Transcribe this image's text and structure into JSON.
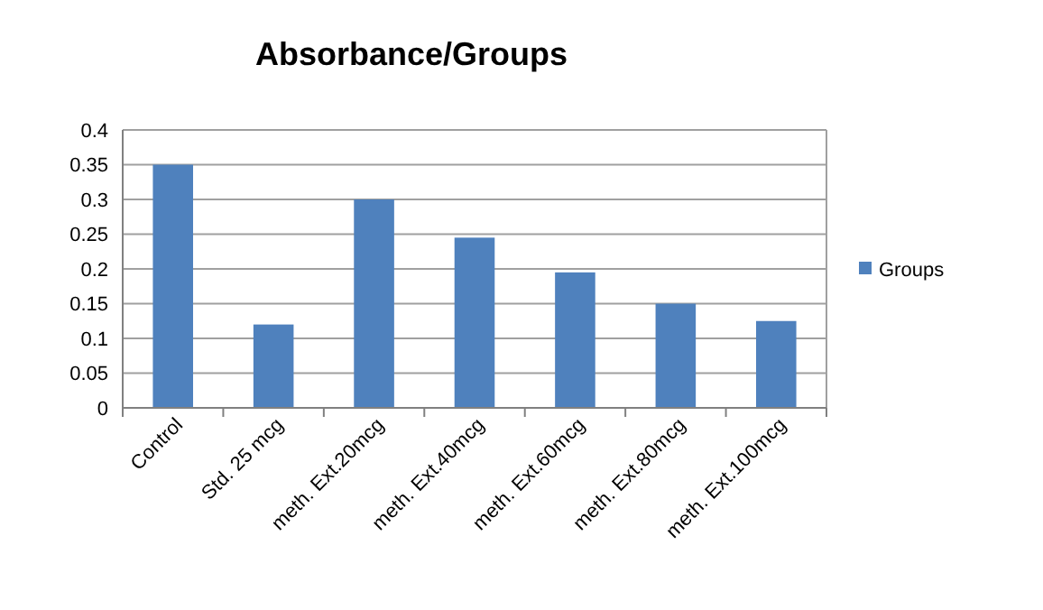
{
  "chart_data": {
    "type": "bar",
    "title": "Absorbance/Groups",
    "categories": [
      "Control",
      "Std. 25 mcg",
      "meth. Ext.20mcg",
      "meth. Ext.40mcg",
      "meth. Ext.60mcg",
      "meth. Ext.80mcg",
      "meth. Ext.100mcg"
    ],
    "series": [
      {
        "name": "Groups",
        "color": "#4f81bd",
        "values": [
          0.35,
          0.12,
          0.3,
          0.245,
          0.195,
          0.15,
          0.125
        ]
      }
    ],
    "ylim": [
      0,
      0.4
    ],
    "yticks": [
      0,
      0.05,
      0.1,
      0.15,
      0.2,
      0.25,
      0.3,
      0.35,
      0.4
    ],
    "grid": "y",
    "legend": "right"
  }
}
